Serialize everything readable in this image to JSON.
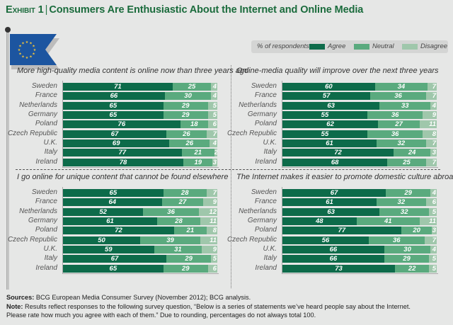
{
  "header": {
    "exhibit_label": "Exhibit 1",
    "separator": "|",
    "title": "Consumers Are Enthusiastic About the Internet and Online Media"
  },
  "flag_icon": "eu-flag-icon",
  "legend": {
    "caption": "% of respondents",
    "items": [
      {
        "label": "Agree",
        "color": "#0d6b4a"
      },
      {
        "label": "Neutral",
        "color": "#5aaa7e"
      },
      {
        "label": "Disagree",
        "color": "#9fc7ab"
      }
    ]
  },
  "chart_data": [
    {
      "type": "bar",
      "orientation": "horizontal-stacked",
      "title": "More high-quality media content is online now than three years ago",
      "categories": [
        "Sweden",
        "France",
        "Netherlands",
        "Germany",
        "Poland",
        "Czech Republic",
        "U.K.",
        "Italy",
        "Ireland"
      ],
      "series": [
        {
          "name": "Agree",
          "values": [
            71,
            66,
            65,
            65,
            76,
            67,
            69,
            77,
            78
          ]
        },
        {
          "name": "Neutral",
          "values": [
            25,
            30,
            29,
            29,
            18,
            26,
            26,
            21,
            19
          ]
        },
        {
          "name": "Disagree",
          "values": [
            4,
            4,
            5,
            5,
            6,
            7,
            4,
            2,
            3
          ]
        }
      ],
      "xlim": [
        0,
        100
      ]
    },
    {
      "type": "bar",
      "orientation": "horizontal-stacked",
      "title": "Online-media quality will improve over the next three years",
      "categories": [
        "Sweden",
        "France",
        "Netherlands",
        "Germany",
        "Poland",
        "Czech Republic",
        "U.K.",
        "Italy",
        "Ireland"
      ],
      "series": [
        {
          "name": "Agree",
          "values": [
            60,
            57,
            63,
            55,
            62,
            55,
            61,
            72,
            68
          ]
        },
        {
          "name": "Neutral",
          "values": [
            34,
            36,
            33,
            36,
            27,
            36,
            32,
            24,
            25
          ]
        },
        {
          "name": "Disagree",
          "values": [
            7,
            7,
            4,
            9,
            11,
            8,
            7,
            3,
            7
          ]
        }
      ],
      "xlim": [
        0,
        100
      ]
    },
    {
      "type": "bar",
      "orientation": "horizontal-stacked",
      "title": "I go online for unique content that cannot be found elsewhere",
      "categories": [
        "Sweden",
        "France",
        "Netherlands",
        "Germany",
        "Poland",
        "Czech Republic",
        "U.K.",
        "Italy",
        "Ireland"
      ],
      "series": [
        {
          "name": "Agree",
          "values": [
            65,
            64,
            52,
            61,
            72,
            50,
            59,
            67,
            65
          ]
        },
        {
          "name": "Neutral",
          "values": [
            28,
            27,
            36,
            28,
            21,
            39,
            31,
            29,
            29
          ]
        },
        {
          "name": "Disagree",
          "values": [
            7,
            9,
            12,
            11,
            8,
            11,
            9,
            5,
            6
          ]
        }
      ],
      "xlim": [
        0,
        100
      ]
    },
    {
      "type": "bar",
      "orientation": "horizontal-stacked",
      "title": "The Internet makes it easier to promote domestic culture abroad",
      "categories": [
        "Sweden",
        "France",
        "Netherlands",
        "Germany",
        "Poland",
        "Czech Republic",
        "U.K.",
        "Italy",
        "Ireland"
      ],
      "series": [
        {
          "name": "Agree",
          "values": [
            67,
            61,
            63,
            48,
            77,
            56,
            66,
            66,
            73
          ]
        },
        {
          "name": "Neutral",
          "values": [
            29,
            32,
            32,
            41,
            20,
            36,
            30,
            29,
            22
          ]
        },
        {
          "name": "Disagree",
          "values": [
            4,
            6,
            5,
            11,
            3,
            7,
            4,
            5,
            5
          ]
        }
      ],
      "xlim": [
        0,
        100
      ]
    }
  ],
  "footer": {
    "sources_label": "Sources:",
    "sources_text": " BCG European Media Consumer Survey (November 2012); BCG analysis.",
    "note_label": "Note:",
    "note_text": " Results reflect responses to the following survey question, “Below is a series of statements we’ve heard people say about the Internet.",
    "note_text_2": "Please rate how much you agree with each of them.” Due to rounding, percentages do not always total 100."
  }
}
